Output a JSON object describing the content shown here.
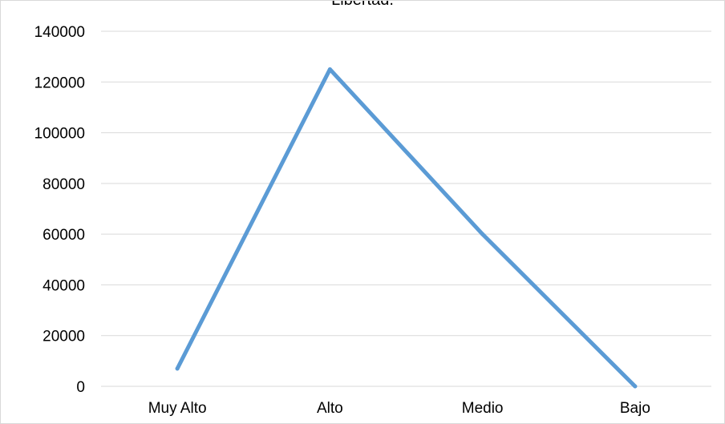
{
  "chart_data": {
    "type": "line",
    "title": "Libertad.",
    "categories": [
      "Muy Alto",
      "Alto",
      "Medio",
      "Bajo"
    ],
    "series": [
      {
        "values": [
          7000,
          125000,
          60000,
          0
        ]
      }
    ],
    "ylim": [
      0,
      140000
    ],
    "yticks": [
      "0",
      "20000",
      "40000",
      "60000",
      "80000",
      "100000",
      "120000",
      "140000"
    ],
    "grid": true,
    "legend": "none",
    "colors": {
      "line": "#5b9bd5",
      "grid": "#d9d9d9"
    }
  }
}
